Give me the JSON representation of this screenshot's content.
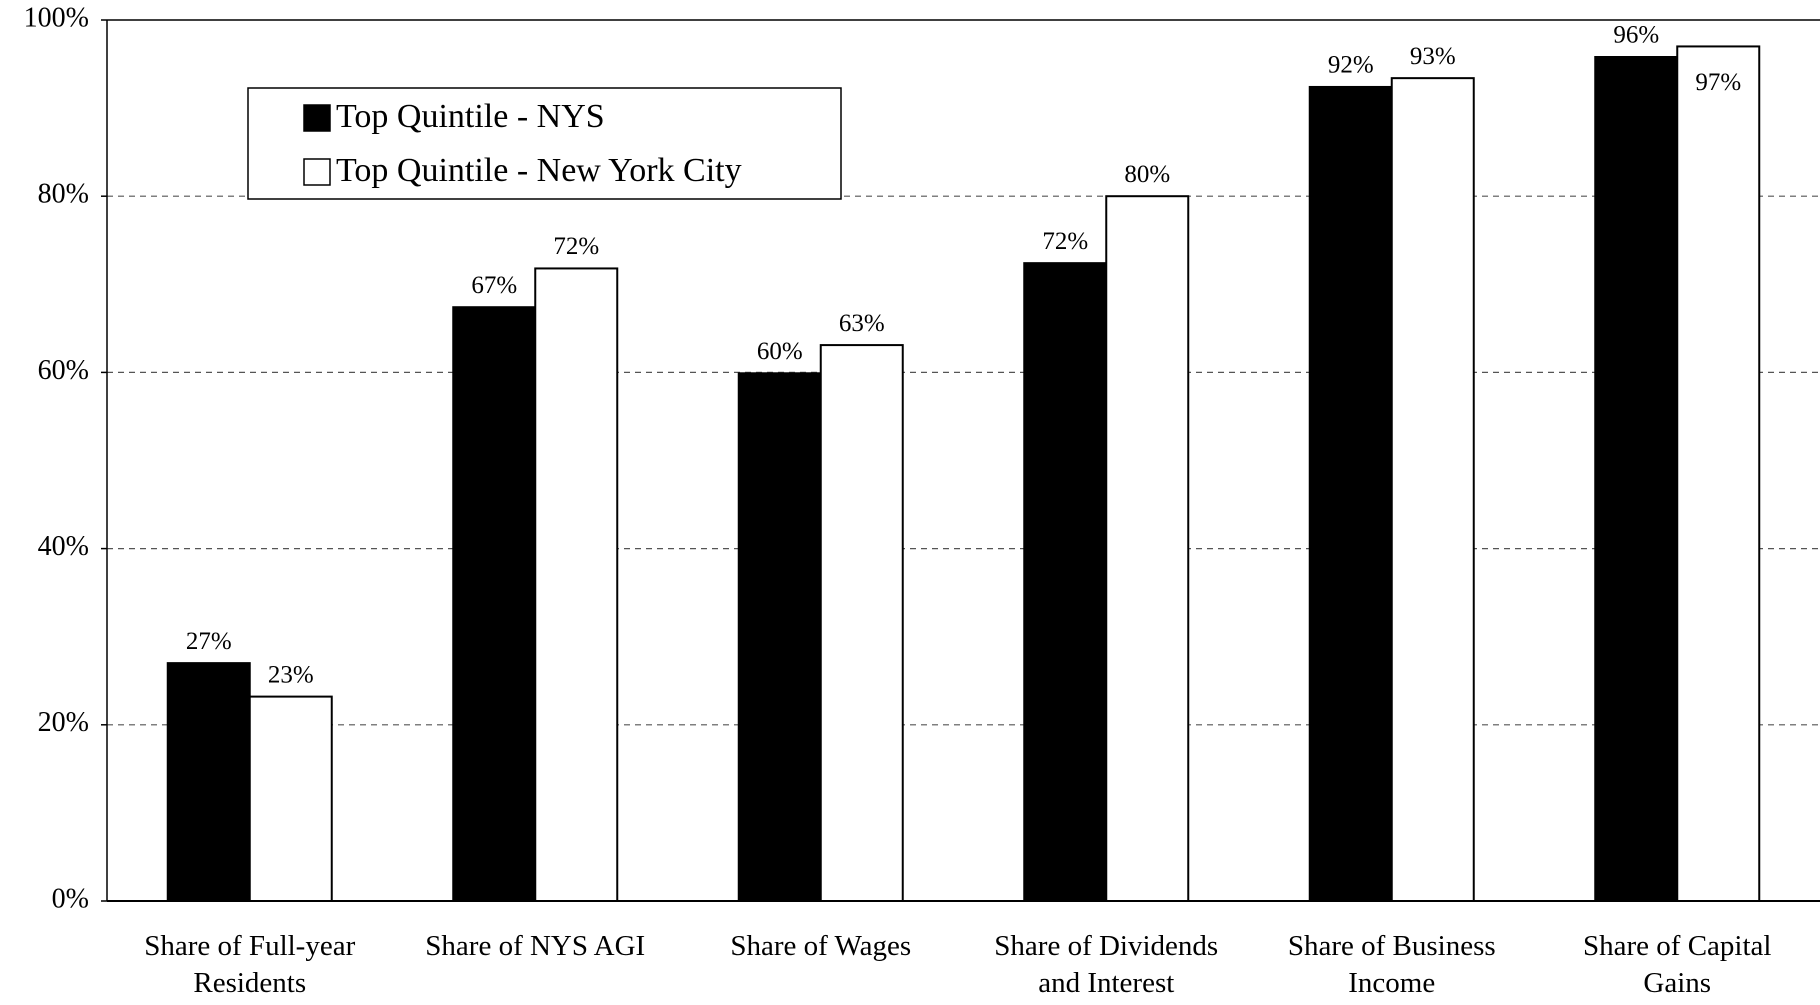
{
  "chart_data": {
    "type": "bar",
    "categories": [
      "Share of Full-year Residents",
      "Share of NYS AGI",
      "Share of Wages",
      "Share of Dividends and Interest",
      "Share of Business Income",
      "Share of Capital Gains"
    ],
    "series": [
      {
        "name": "Top Quintile - NYS",
        "color": "#000000",
        "values": [
          27,
          67.4,
          59.9,
          72.4,
          92.4,
          95.8
        ],
        "value_labels": [
          "27%",
          "67%",
          "60%",
          "72%",
          "92%",
          "96%"
        ]
      },
      {
        "name": "Top Quintile - New York City",
        "color": "#ffffff",
        "values": [
          23.2,
          71.8,
          63.1,
          80,
          93.4,
          97
        ],
        "value_labels": [
          "23%",
          "72%",
          "63%",
          "80%",
          "93%",
          "97%"
        ]
      }
    ],
    "ylim": [
      0,
      100
    ],
    "yticks": [
      {
        "value": 0,
        "label": "0%"
      },
      {
        "value": 20,
        "label": "20%"
      },
      {
        "value": 40,
        "label": "40%"
      },
      {
        "value": 60,
        "label": "60%"
      },
      {
        "value": 80,
        "label": "80%"
      },
      {
        "value": 100,
        "label": "100%"
      }
    ],
    "grid": true,
    "legend": "upper left"
  }
}
